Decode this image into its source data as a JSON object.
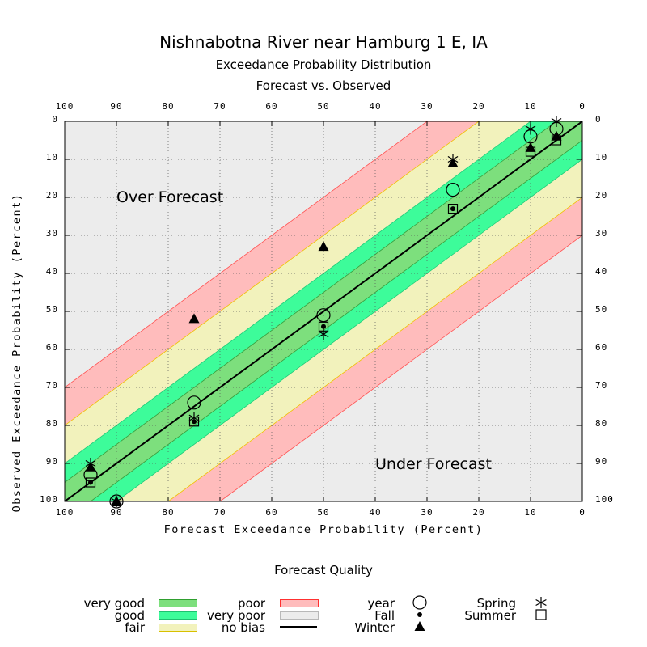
{
  "chart_data": {
    "type": "scatter",
    "title": "Nishnabotna River near Hamburg 1 E, IA",
    "subtitle": [
      "Exceedance Probability Distribution",
      "Forecast vs. Observed"
    ],
    "xlabel": "Forecast Exceedance Probability (Percent)",
    "ylabel": "Observed Exceedance Probability (Percent)",
    "xlim": [
      100,
      0
    ],
    "ylim": [
      100,
      0
    ],
    "x_ticks": [
      "100",
      "90",
      "80",
      "70",
      "60",
      "50",
      "40",
      "30",
      "20",
      "10",
      "0"
    ],
    "y_ticks": [
      "0",
      "10",
      "20",
      "30",
      "40",
      "50",
      "60",
      "70",
      "80",
      "90",
      "100"
    ],
    "grid": true,
    "annotations": [
      "Over Forecast",
      "Under Forecast"
    ],
    "bands": [
      {
        "name": "very good",
        "offset": 5,
        "color": "#7ddf7d"
      },
      {
        "name": "good",
        "offset": 10,
        "color": "#3dfc9a"
      },
      {
        "name": "fair",
        "offset": 20,
        "color": "#f2f2bc"
      },
      {
        "name": "poor",
        "offset": 30,
        "color": "#ffbcbc"
      },
      {
        "name": "very poor",
        "offset": 100,
        "color": "#ececec"
      }
    ],
    "series": [
      {
        "name": "year",
        "marker": "circle",
        "points": [
          [
            95,
            93
          ],
          [
            90,
            100
          ],
          [
            75,
            74
          ],
          [
            50,
            51
          ],
          [
            25,
            18
          ],
          [
            10,
            4
          ],
          [
            5,
            2
          ]
        ]
      },
      {
        "name": "Fall",
        "marker": "dot",
        "points": [
          [
            95,
            95
          ],
          [
            90,
            100
          ],
          [
            75,
            79
          ],
          [
            50,
            54
          ],
          [
            25,
            23
          ],
          [
            10,
            7
          ],
          [
            5,
            4
          ]
        ]
      },
      {
        "name": "Winter",
        "marker": "triangle",
        "points": [
          [
            95,
            91
          ],
          [
            90,
            100
          ],
          [
            75,
            52
          ],
          [
            50,
            33
          ],
          [
            25,
            11
          ],
          [
            10,
            7
          ],
          [
            5,
            4
          ]
        ]
      },
      {
        "name": "Spring",
        "marker": "asterisk",
        "points": [
          [
            95,
            90
          ],
          [
            90,
            100
          ],
          [
            75,
            78
          ],
          [
            50,
            56
          ],
          [
            25,
            10
          ],
          [
            10,
            2
          ],
          [
            5,
            0
          ]
        ]
      },
      {
        "name": "Summer",
        "marker": "square",
        "points": [
          [
            95,
            95
          ],
          [
            90,
            100
          ],
          [
            75,
            79
          ],
          [
            50,
            54
          ],
          [
            25,
            23
          ],
          [
            10,
            8
          ],
          [
            5,
            5
          ]
        ]
      }
    ]
  },
  "legend": {
    "title": "Forecast Quality",
    "quality": [
      {
        "label": "very good",
        "color": "#7ddf7d",
        "border": "#2f9f2f"
      },
      {
        "label": "good",
        "color": "#3dfc9a",
        "border": "#1fc070"
      },
      {
        "label": "fair",
        "color": "#f2f2bc",
        "border": "#d8c000"
      },
      {
        "label": "poor",
        "color": "#ffbcbc",
        "border": "#ff3030"
      },
      {
        "label": "very poor",
        "color": "#ececec",
        "border": "#b8b8b8"
      },
      {
        "label": "no bias",
        "line": "#000000"
      }
    ],
    "seasons": [
      {
        "label": "year",
        "marker": "circle"
      },
      {
        "label": "Fall",
        "marker": "dot"
      },
      {
        "label": "Winter",
        "marker": "triangle"
      },
      {
        "label": "Spring",
        "marker": "asterisk"
      },
      {
        "label": "Summer",
        "marker": "square"
      }
    ]
  }
}
